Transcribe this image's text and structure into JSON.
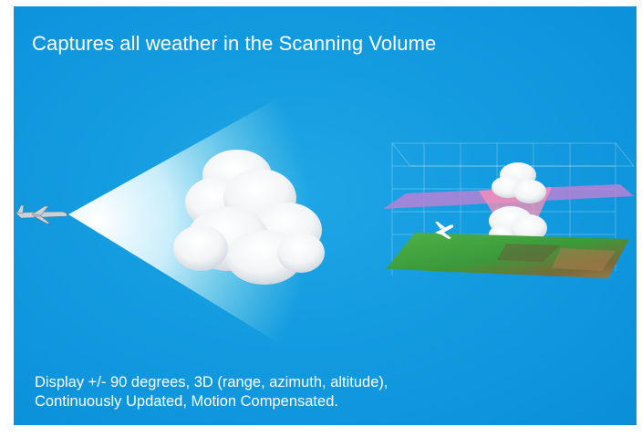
{
  "title": "Captures all weather in the Scanning Volume",
  "caption": {
    "line1": "Display +/- 90 degrees, 3D (range, azimuth, altitude),",
    "line2": "Continuously Updated, Motion Compensated."
  },
  "colors": {
    "background": "#139be0",
    "text": "#ffffff",
    "beam": "#ffffff",
    "altitude_plane": "#b77fd0",
    "terrain": "#3fa43a"
  },
  "illustrations": {
    "left": [
      "airplane-icon",
      "radar-beam",
      "cloud"
    ],
    "right": [
      "3d-grid",
      "altitude-plane",
      "cloud",
      "airplane-icon",
      "terrain-map"
    ]
  }
}
